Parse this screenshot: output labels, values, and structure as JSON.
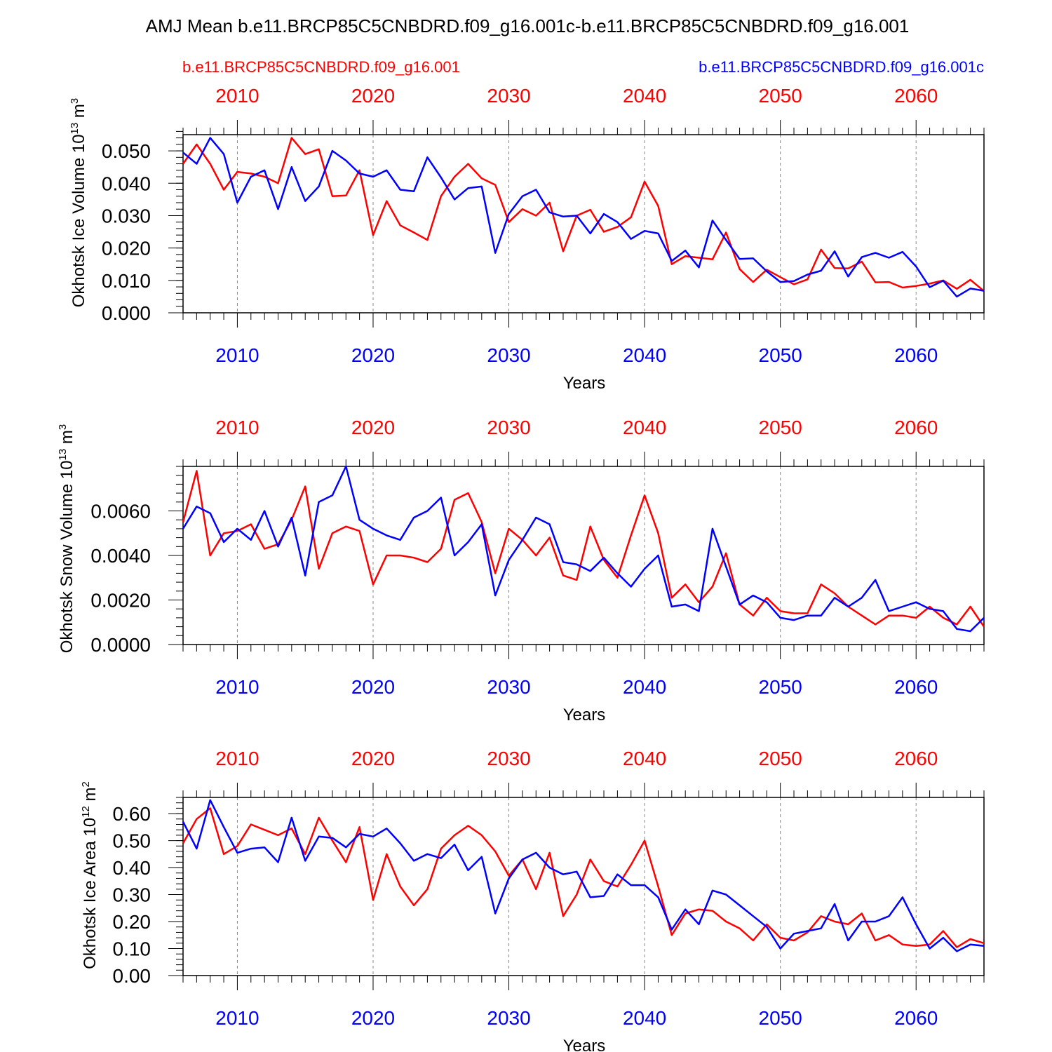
{
  "title": "AMJ Mean b.e11.BRCP85C5CNBDRD.f09_g16.001c-b.e11.BRCP85C5CNBDRD.f09_g16.001",
  "legend": {
    "red_label": "b.e11.BRCP85C5CNBDRD.f09_g16.001",
    "blue_label": "b.e11.BRCP85C5CNBDRD.f09_g16.001c"
  },
  "colors": {
    "red": "#ff0000",
    "blue": "#0000ff",
    "axis": "#000000",
    "grid": "#888888"
  },
  "chart_data": [
    {
      "type": "line",
      "ylabel": "Okhotsk Ice Volume",
      "yunit_base": "10",
      "yunit_exp": "13",
      "yunit_main": "m",
      "yunit_sup": "3",
      "xlabel": "Years",
      "xlim": [
        2006,
        2065
      ],
      "ylim": [
        0,
        0.055
      ],
      "xticks": [
        2010,
        2020,
        2030,
        2040,
        2050,
        2060
      ],
      "xtick_labels": [
        "2010",
        "2020",
        "2030",
        "2040",
        "2050",
        "2060"
      ],
      "yticks": [
        0,
        0.01,
        0.02,
        0.03,
        0.04,
        0.05
      ],
      "ytick_labels": [
        "0.000",
        "0.010",
        "0.020",
        "0.030",
        "0.040",
        "0.050"
      ],
      "yminor_step": 0.002,
      "series": [
        {
          "name": "b.e11.BRCP85C5CNBDRD.f09_g16.001",
          "color": "red",
          "start": 2006,
          "values": [
            0.046,
            0.052,
            0.046,
            0.038,
            0.0435,
            0.043,
            0.042,
            0.04,
            0.054,
            0.049,
            0.0505,
            0.036,
            0.0362,
            0.044,
            0.024,
            0.0345,
            0.027,
            0.0248,
            0.0225,
            0.036,
            0.042,
            0.046,
            0.0415,
            0.0395,
            0.028,
            0.032,
            0.03,
            0.034,
            0.019,
            0.03,
            0.0318,
            0.025,
            0.0265,
            0.0295,
            0.0405,
            0.033,
            0.015,
            0.0175,
            0.017,
            0.0165,
            0.0248,
            0.0135,
            0.0095,
            0.0133,
            0.011,
            0.0088,
            0.0103,
            0.0195,
            0.0138,
            0.0137,
            0.0158,
            0.0094,
            0.0095,
            0.0078,
            0.0083,
            0.009,
            0.01,
            0.0074,
            0.0102,
            0.0067
          ]
        },
        {
          "name": "b.e11.BRCP85C5CNBDRD.f09_g16.001c",
          "color": "blue",
          "start": 2006,
          "values": [
            0.0495,
            0.046,
            0.054,
            0.049,
            0.034,
            0.042,
            0.044,
            0.032,
            0.045,
            0.0345,
            0.039,
            0.05,
            0.047,
            0.043,
            0.042,
            0.044,
            0.038,
            0.0375,
            0.048,
            0.0418,
            0.035,
            0.0385,
            0.039,
            0.0185,
            0.0305,
            0.036,
            0.038,
            0.031,
            0.0297,
            0.03,
            0.0245,
            0.0305,
            0.028,
            0.0228,
            0.0253,
            0.0245,
            0.016,
            0.0192,
            0.014,
            0.0285,
            0.0225,
            0.0166,
            0.0168,
            0.0128,
            0.0095,
            0.0098,
            0.0118,
            0.013,
            0.019,
            0.0112,
            0.0172,
            0.0185,
            0.017,
            0.0188,
            0.0143,
            0.0079,
            0.0099,
            0.005,
            0.0075,
            0.0068
          ]
        }
      ]
    },
    {
      "type": "line",
      "ylabel": "Okhotsk Snow Volume",
      "yunit_base": "10",
      "yunit_exp": "13",
      "yunit_main": "m",
      "yunit_sup": "3",
      "xlabel": "Years",
      "xlim": [
        2006,
        2065
      ],
      "ylim": [
        0,
        0.008
      ],
      "xticks": [
        2010,
        2020,
        2030,
        2040,
        2050,
        2060
      ],
      "xtick_labels": [
        "2010",
        "2020",
        "2030",
        "2040",
        "2050",
        "2060"
      ],
      "yticks": [
        0,
        0.002,
        0.004,
        0.006
      ],
      "ytick_labels": [
        "0.0000",
        "0.0020",
        "0.0040",
        "0.0060"
      ],
      "yminor_step": 0.0004,
      "series": [
        {
          "name": "b.e11.BRCP85C5CNBDRD.f09_g16.001",
          "color": "red",
          "start": 2006,
          "values": [
            0.0055,
            0.0078,
            0.004,
            0.005,
            0.0051,
            0.0054,
            0.0043,
            0.0045,
            0.0056,
            0.0071,
            0.0034,
            0.005,
            0.0053,
            0.0051,
            0.0027,
            0.004,
            0.004,
            0.0039,
            0.0037,
            0.0043,
            0.0065,
            0.0068,
            0.0055,
            0.0032,
            0.0052,
            0.0047,
            0.004,
            0.0048,
            0.0031,
            0.0029,
            0.0053,
            0.0038,
            0.003,
            0.0049,
            0.0067,
            0.005,
            0.0021,
            0.0027,
            0.0019,
            0.0026,
            0.0041,
            0.0018,
            0.0013,
            0.0021,
            0.0015,
            0.0014,
            0.0014,
            0.0027,
            0.0023,
            0.0017,
            0.0013,
            0.0009,
            0.0013,
            0.0013,
            0.0012,
            0.0017,
            0.0012,
            0.0009,
            0.0017,
            0.0008
          ]
        },
        {
          "name": "b.e11.BRCP85C5CNBDRD.f09_g16.001c",
          "color": "blue",
          "start": 2006,
          "values": [
            0.0052,
            0.0062,
            0.0059,
            0.0046,
            0.0052,
            0.0047,
            0.006,
            0.0044,
            0.0057,
            0.0031,
            0.0064,
            0.0067,
            0.008,
            0.0056,
            0.0052,
            0.0049,
            0.0047,
            0.0057,
            0.006,
            0.0066,
            0.004,
            0.0046,
            0.0054,
            0.0022,
            0.0038,
            0.0047,
            0.0057,
            0.0054,
            0.0037,
            0.0036,
            0.0033,
            0.0039,
            0.0032,
            0.0026,
            0.0034,
            0.004,
            0.0017,
            0.0018,
            0.0015,
            0.0052,
            0.0035,
            0.0018,
            0.0022,
            0.0019,
            0.0012,
            0.0011,
            0.0013,
            0.0013,
            0.0021,
            0.0017,
            0.0021,
            0.0029,
            0.0015,
            0.0017,
            0.0019,
            0.0016,
            0.0015,
            0.0007,
            0.0006,
            0.0012
          ]
        }
      ]
    },
    {
      "type": "line",
      "ylabel": "Okhotsk Ice Area",
      "yunit_base": "10",
      "yunit_exp": "12",
      "yunit_main": "m",
      "yunit_sup": "2",
      "xlabel": "Years",
      "xlim": [
        2006,
        2065
      ],
      "ylim": [
        0,
        0.66
      ],
      "xticks": [
        2010,
        2020,
        2030,
        2040,
        2050,
        2060
      ],
      "xtick_labels": [
        "2010",
        "2020",
        "2030",
        "2040",
        "2050",
        "2060"
      ],
      "yticks": [
        0,
        0.1,
        0.2,
        0.3,
        0.4,
        0.5,
        0.6
      ],
      "ytick_labels": [
        "0.00",
        "0.10",
        "0.20",
        "0.30",
        "0.40",
        "0.50",
        "0.60"
      ],
      "yminor_step": 0.02,
      "series": [
        {
          "name": "b.e11.BRCP85C5CNBDRD.f09_g16.001",
          "color": "red",
          "start": 2006,
          "values": [
            0.49,
            0.58,
            0.62,
            0.45,
            0.48,
            0.56,
            0.54,
            0.52,
            0.545,
            0.45,
            0.585,
            0.5,
            0.42,
            0.55,
            0.28,
            0.45,
            0.33,
            0.26,
            0.32,
            0.47,
            0.52,
            0.555,
            0.52,
            0.46,
            0.37,
            0.43,
            0.32,
            0.455,
            0.22,
            0.3,
            0.43,
            0.35,
            0.33,
            0.41,
            0.5,
            0.33,
            0.15,
            0.23,
            0.245,
            0.24,
            0.2,
            0.175,
            0.13,
            0.19,
            0.14,
            0.13,
            0.16,
            0.22,
            0.2,
            0.19,
            0.23,
            0.13,
            0.15,
            0.115,
            0.11,
            0.115,
            0.165,
            0.105,
            0.135,
            0.12
          ]
        },
        {
          "name": "b.e11.BRCP85C5CNBDRD.f09_g16.001c",
          "color": "blue",
          "start": 2006,
          "values": [
            0.57,
            0.47,
            0.65,
            0.55,
            0.455,
            0.47,
            0.475,
            0.42,
            0.585,
            0.425,
            0.515,
            0.51,
            0.475,
            0.525,
            0.515,
            0.545,
            0.49,
            0.425,
            0.45,
            0.435,
            0.485,
            0.39,
            0.44,
            0.23,
            0.36,
            0.43,
            0.455,
            0.4,
            0.375,
            0.385,
            0.29,
            0.295,
            0.375,
            0.335,
            0.335,
            0.29,
            0.17,
            0.245,
            0.19,
            0.315,
            0.3,
            0.26,
            0.22,
            0.18,
            0.1,
            0.155,
            0.165,
            0.175,
            0.265,
            0.13,
            0.2,
            0.2,
            0.22,
            0.29,
            0.19,
            0.1,
            0.14,
            0.09,
            0.115,
            0.11
          ]
        }
      ]
    }
  ]
}
